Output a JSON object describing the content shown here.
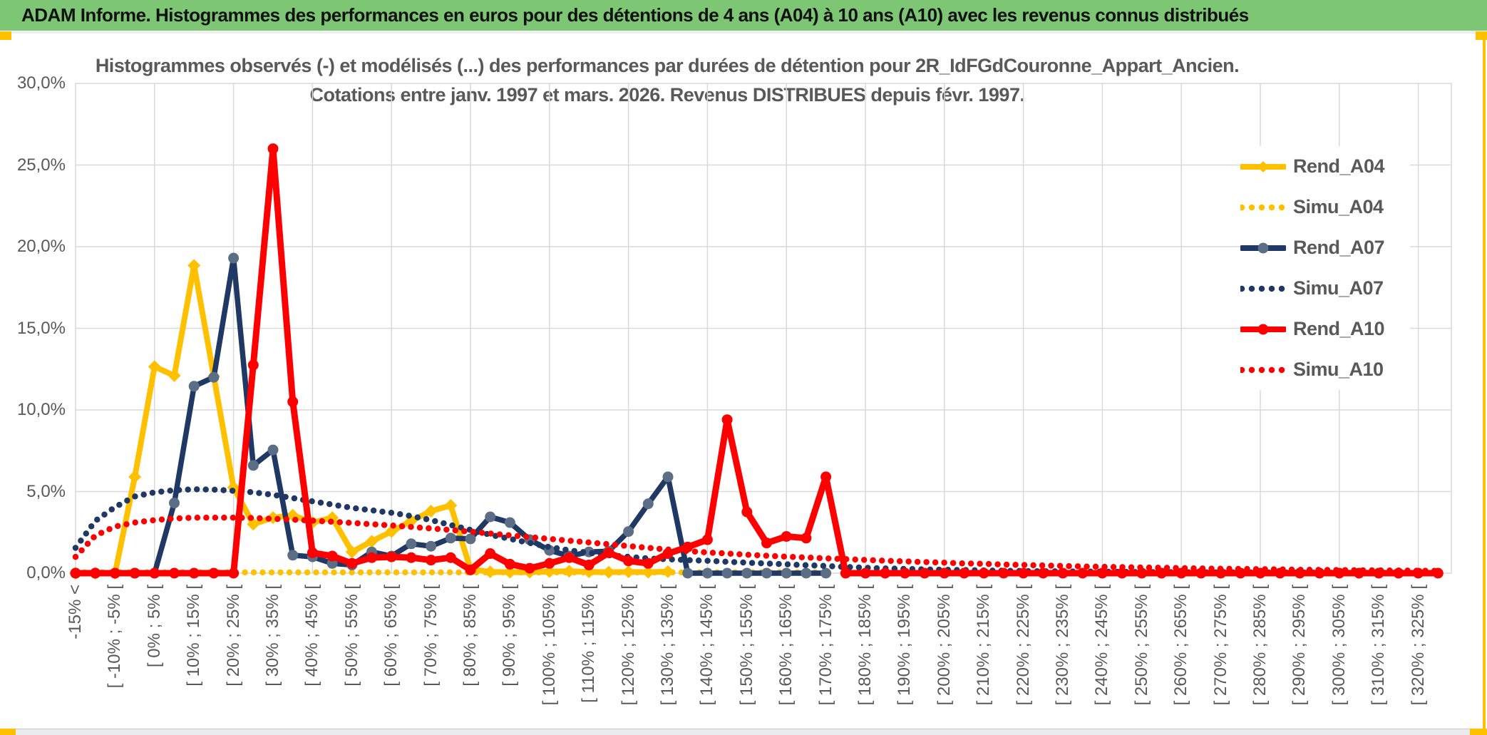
{
  "header": {
    "title": "ADAM Informe. Histogrammes des performances en euros pour des détentions de 4 ans (A04) à 10 ans (A10) avec les revenus connus distribués"
  },
  "colors": {
    "header_bg": "#7CC674",
    "gold": "#FFC000",
    "navy": "#1F3864",
    "navy_marker": "#5B6E85",
    "red": "#FF0000",
    "grid": "#D9D9D9",
    "text": "#595959"
  },
  "chart_data": {
    "type": "line",
    "title_line1": "Histogrammes observés (-) et modélisés (...) des performances par durées de détention pour 2R_IdFGdCouronne_Appart_Ancien.",
    "title_line2": "Cotations entre janv. 1997 et mars. 2026. Revenus DISTRIBUES depuis févr. 1997.",
    "ylim": [
      0,
      30
    ],
    "ytick_labels": [
      "0,0%",
      "5,0%",
      "10,0%",
      "15,0%",
      "20,0%",
      "25,0%",
      "30,0%"
    ],
    "grid": "on",
    "legend_position": "right",
    "x_note": "bins of 5% width; axis labels shown on every other bin",
    "categories": [
      "-15% <",
      "",
      "[ -10% ; -5% [",
      "",
      "[ 0% ; 5% [",
      "",
      "[ 10% ; 15% [",
      "",
      "[ 20% ; 25% [",
      "",
      "[ 30% ; 35% [",
      "",
      "[ 40% ; 45% [",
      "",
      "[ 50% ; 55% [",
      "",
      "[ 60% ; 65% [",
      "",
      "[ 70% ; 75% [",
      "",
      "[ 80% ; 85% [",
      "",
      "[ 90% ; 95% [",
      "",
      "[ 100% ; 105% [",
      "",
      "[ 110% ; 115% [",
      "",
      "[ 120% ; 125% [",
      "",
      "[ 130% ; 135% [",
      "",
      "[ 140% ; 145% [",
      "",
      "[ 150% ; 155% [",
      "",
      "[ 160% ; 165% [",
      "",
      "[ 170% ; 175% [",
      "",
      "[ 180% ; 185% [",
      "",
      "[ 190% ; 195% [",
      "",
      "[ 200% ; 205% [",
      "",
      "[ 210% ; 215% [",
      "",
      "[ 220% ; 225% [",
      "",
      "[ 230% ; 235% [",
      "",
      "[ 240% ; 245% [",
      "",
      "[ 250% ; 255% [",
      "",
      "[ 260% ; 265% [",
      "",
      "[ 270% ; 275% [",
      "",
      "[ 280% ; 285% [",
      "",
      "[ 290% ; 295% [",
      "",
      "[ 300% ; 305% [",
      "",
      "[ 310% ; 315% [",
      "",
      "[ 320% ; 325% [",
      ""
    ],
    "series": [
      {
        "name": "Rend_A04",
        "color": "#FFC000",
        "style": "solid",
        "marker": "diamond",
        "width": 8,
        "values": [
          0,
          0,
          0,
          5.9,
          12.65,
          12.1,
          18.85,
          12.05,
          5.25,
          3.0,
          3.4,
          3.55,
          3.1,
          3.4,
          1.3,
          1.95,
          2.55,
          3.2,
          3.8,
          4.15,
          0.25,
          0.08,
          0.06,
          0.06,
          0.1,
          0.12,
          0.08,
          0.06,
          0.08,
          0.06,
          0.1,
          null,
          null,
          null,
          null,
          null,
          null,
          null,
          null,
          null,
          null,
          null,
          null,
          null,
          null,
          null,
          null,
          null,
          null,
          null,
          null,
          null,
          null,
          null,
          null,
          null,
          null,
          null,
          null,
          null,
          null,
          null,
          null,
          null,
          null,
          null,
          null,
          null,
          null,
          null
        ]
      },
      {
        "name": "Simu_A04",
        "color": "#FFC000",
        "style": "dotted",
        "marker": "none",
        "width": 8,
        "values": [
          0.05,
          0.05,
          0.05,
          0.05,
          0.05,
          0.05,
          0.05,
          0.05,
          0.05,
          0.05,
          0.05,
          0.05,
          0.05,
          0.05,
          0.05,
          0.05,
          0.05,
          0.05,
          0.05,
          0.05,
          0.05,
          0.05,
          0.05,
          0.05,
          0.05,
          0.05,
          0.05,
          0.05,
          0.05,
          0.05,
          0.05,
          0.05,
          0.05,
          0.05,
          0.05,
          0.05,
          0.05,
          0.05,
          0.05,
          null,
          null,
          null,
          null,
          null,
          null,
          null,
          null,
          null,
          null,
          null,
          null,
          null,
          null,
          null,
          null,
          null,
          null,
          null,
          null,
          null,
          null,
          null,
          null,
          null,
          null,
          null,
          null,
          null,
          null,
          null
        ]
      },
      {
        "name": "Rend_A07",
        "color": "#1F3864",
        "style": "solid",
        "marker": "circle",
        "marker_color": "#5B6E85",
        "width": 7.5,
        "values": [
          0,
          0,
          0,
          0,
          0,
          4.3,
          11.45,
          12.0,
          19.3,
          6.6,
          7.55,
          1.1,
          1.0,
          0.6,
          0.5,
          1.3,
          1.05,
          1.8,
          1.65,
          2.15,
          2.1,
          3.45,
          3.1,
          2.05,
          1.4,
          1.05,
          1.3,
          1.35,
          2.55,
          4.25,
          5.9,
          0,
          0,
          0,
          0,
          0,
          0,
          0,
          0,
          null,
          null,
          null,
          null,
          null,
          null,
          null,
          null,
          null,
          null,
          null,
          null,
          null,
          null,
          null,
          null,
          null,
          null,
          null,
          null,
          null,
          null,
          null,
          null,
          null,
          null,
          null,
          null,
          null,
          null,
          null
        ]
      },
      {
        "name": "Simu_A07",
        "color": "#1F3864",
        "style": "dotted",
        "marker": "none",
        "width": 8,
        "values": [
          1.55,
          3.2,
          4.05,
          4.7,
          4.95,
          5.08,
          5.14,
          5.12,
          5.05,
          4.95,
          4.8,
          4.6,
          4.4,
          4.2,
          4.0,
          3.85,
          3.7,
          3.5,
          3.25,
          2.95,
          2.65,
          2.35,
          2.1,
          1.85,
          1.6,
          1.4,
          1.25,
          1.1,
          1.0,
          0.9,
          0.85,
          0.8,
          0.76,
          0.7,
          0.64,
          0.59,
          0.54,
          0.49,
          0.44,
          0.38,
          0.33,
          0.29,
          0.26,
          0.23,
          0.21,
          0.19,
          0.17,
          0.15,
          0.13,
          0.12,
          0.11,
          0.1,
          0.09,
          0.08,
          0.07,
          0.06,
          0.06,
          0.05,
          0.05,
          0.04,
          0.04,
          0.03,
          0.03,
          0.03,
          0.02,
          0.02,
          0.02,
          0.02,
          0.01,
          0.01
        ]
      },
      {
        "name": "Rend_A10",
        "color": "#FF0000",
        "style": "solid",
        "marker": "circle",
        "width": 9,
        "values": [
          0,
          0,
          0,
          0,
          0,
          0,
          0,
          0,
          0,
          12.75,
          26.0,
          10.5,
          1.25,
          1.05,
          0.6,
          0.95,
          1.0,
          0.95,
          0.8,
          0.95,
          0.2,
          1.2,
          0.55,
          0.3,
          0.6,
          0.95,
          0.5,
          1.25,
          0.75,
          0.6,
          1.2,
          1.6,
          2.05,
          9.4,
          3.75,
          1.85,
          2.25,
          2.15,
          5.9,
          0,
          0,
          0,
          0,
          0,
          0,
          0,
          0,
          0,
          0,
          0,
          0,
          0,
          0,
          0,
          0,
          0,
          0,
          0,
          0,
          0,
          0,
          0,
          0,
          0,
          0,
          0,
          0,
          0,
          0,
          0
        ]
      },
      {
        "name": "Simu_A10",
        "color": "#FF0000",
        "style": "dotted",
        "marker": "none",
        "width": 8,
        "values": [
          1.0,
          2.3,
          2.85,
          3.1,
          3.25,
          3.35,
          3.4,
          3.4,
          3.4,
          3.38,
          3.33,
          3.28,
          3.22,
          3.15,
          3.08,
          3.0,
          2.92,
          2.83,
          2.74,
          2.64,
          2.54,
          2.43,
          2.32,
          2.21,
          2.1,
          1.99,
          1.88,
          1.77,
          1.66,
          1.55,
          1.45,
          1.35,
          1.27,
          1.2,
          1.13,
          1.07,
          1.01,
          0.96,
          0.91,
          0.86,
          0.81,
          0.76,
          0.72,
          0.68,
          0.64,
          0.6,
          0.57,
          0.53,
          0.5,
          0.47,
          0.44,
          0.41,
          0.39,
          0.37,
          0.35,
          0.33,
          0.31,
          0.29,
          0.27,
          0.26,
          0.24,
          0.23,
          0.21,
          0.2,
          0.19,
          0.18,
          0.17,
          0.16,
          0.15,
          0.14
        ]
      }
    ]
  }
}
